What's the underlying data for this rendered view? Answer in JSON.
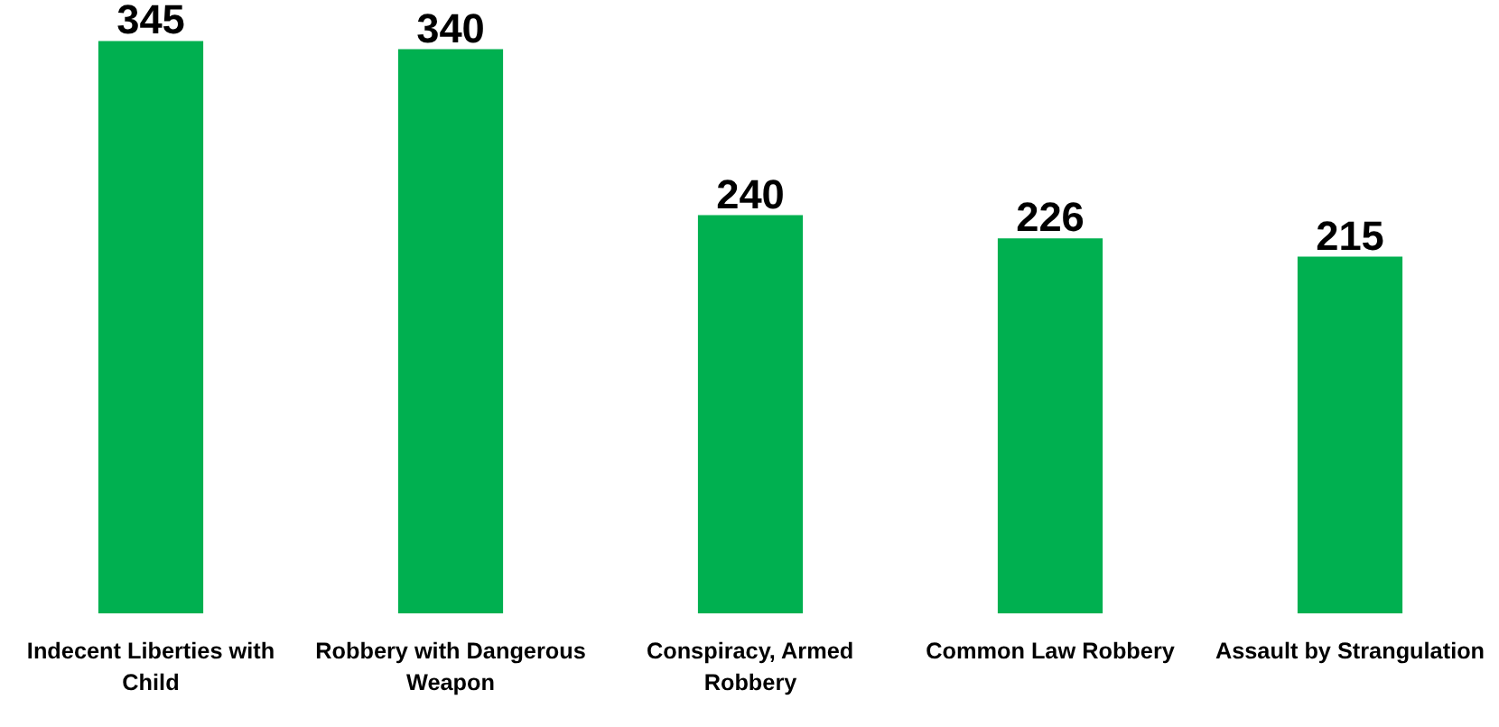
{
  "chart_data": {
    "type": "bar",
    "categories": [
      "Indecent Liberties with Child",
      "Robbery with Dangerous Weapon",
      "Conspiracy, Armed Robbery",
      "Common Law Robbery",
      "Assault by Strangulation"
    ],
    "values": [
      345,
      340,
      240,
      226,
      215
    ],
    "color": "#00b050",
    "data_labels": true
  }
}
